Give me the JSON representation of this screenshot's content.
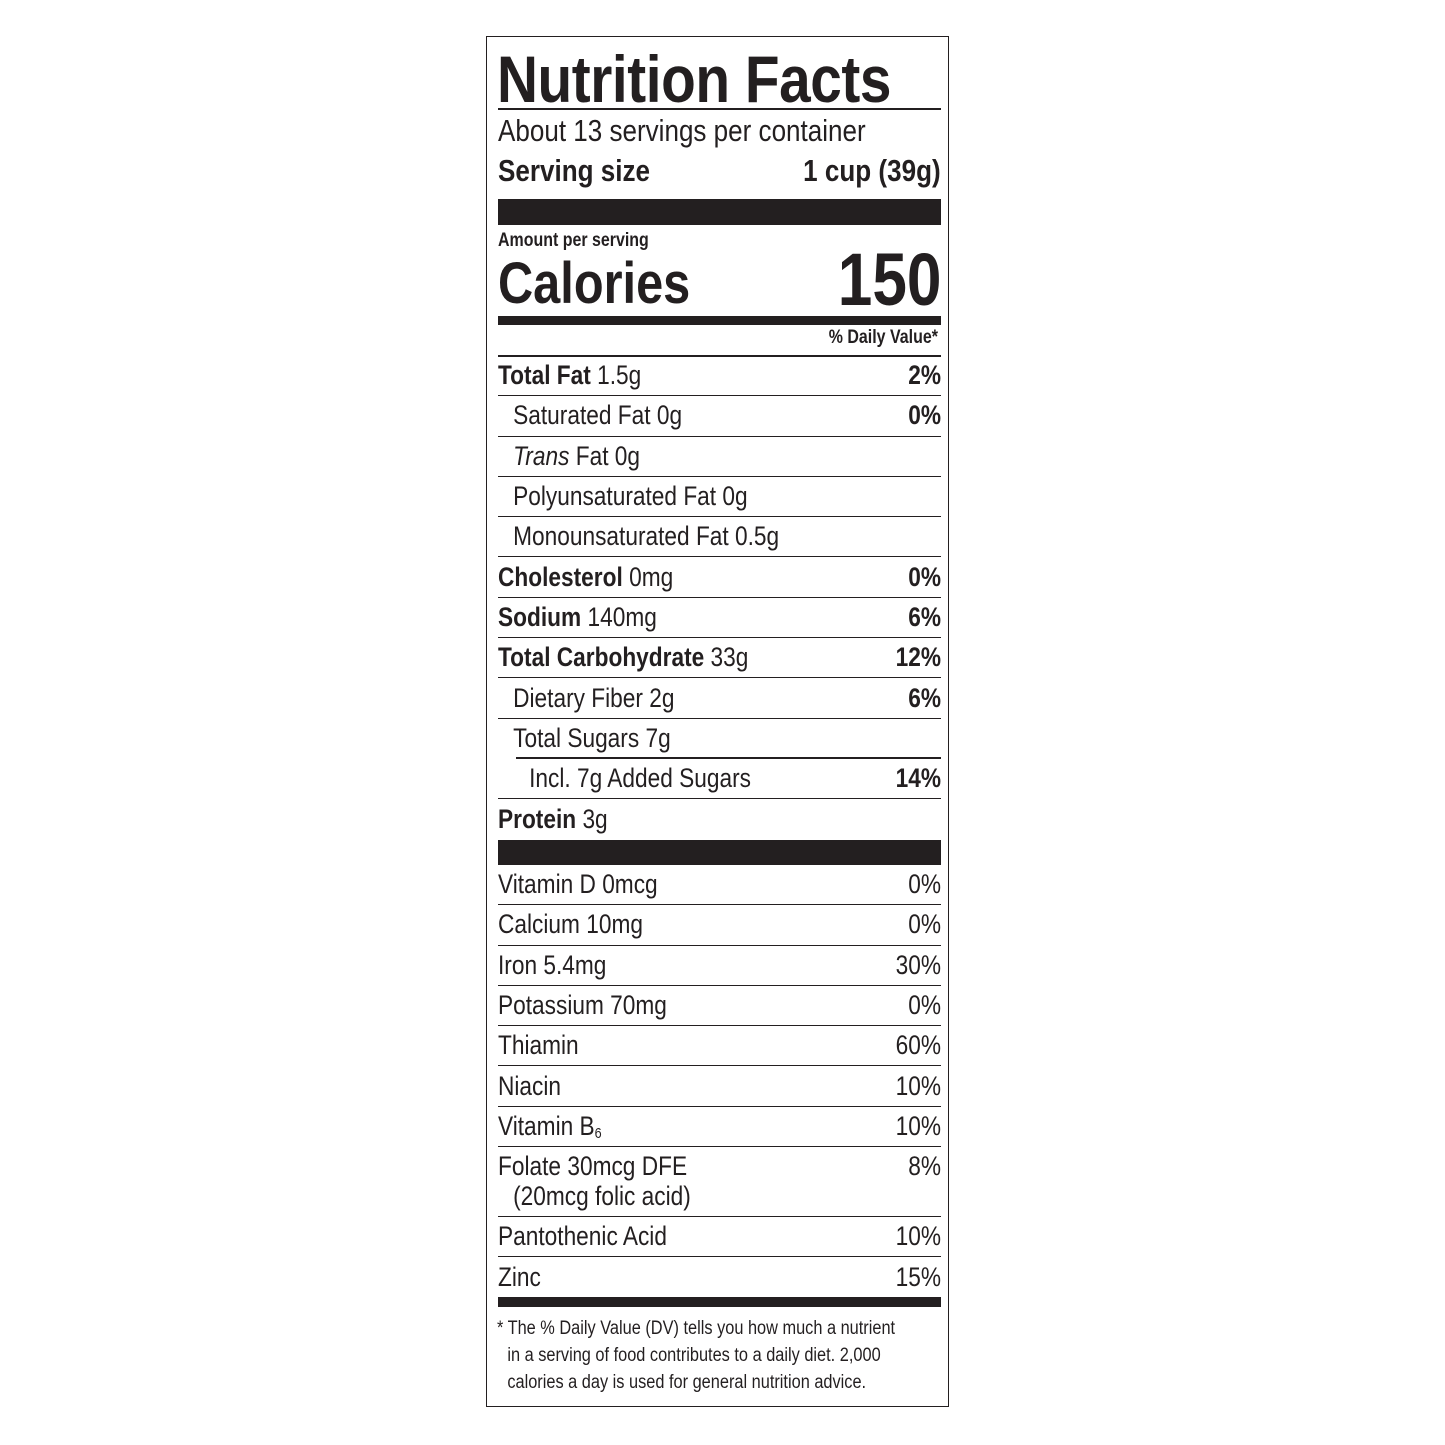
{
  "title": "Nutrition Facts",
  "servings_per_container": "About 13 servings per container",
  "serving_size": {
    "label": "Serving size",
    "value": "1 cup (39g)"
  },
  "amount_per_serving": "Amount per serving",
  "calories": {
    "label": "Calories",
    "value": "150"
  },
  "daily_value_header": "% Daily Value*",
  "nutrients": [
    {
      "name": "Total Fat",
      "amount": "1.5g",
      "dv": "2%"
    },
    {
      "name": "Saturated Fat 0g",
      "dv": "0%"
    },
    {
      "name_italic": "Trans",
      "name": "Fat 0g"
    },
    {
      "name": "Polyunsaturated Fat 0g"
    },
    {
      "name": "Monounsaturated Fat 0.5g"
    },
    {
      "name": "Cholesterol",
      "amount": "0mg",
      "dv": "0%"
    },
    {
      "name": "Sodium",
      "amount": "140mg",
      "dv": "6%"
    },
    {
      "name": "Total Carbohydrate",
      "amount": "33g",
      "dv": "12%"
    },
    {
      "name": "Dietary Fiber 2g",
      "dv": "6%"
    },
    {
      "name": "Total Sugars 7g"
    },
    {
      "name": "Incl. 7g Added Sugars",
      "dv": "14%"
    },
    {
      "name": "Protein",
      "amount": "3g"
    }
  ],
  "vitamins": [
    {
      "name": "Vitamin D 0mcg",
      "dv": "0%"
    },
    {
      "name": "Calcium 10mg",
      "dv": "0%"
    },
    {
      "name": "Iron 5.4mg",
      "dv": "30%"
    },
    {
      "name": "Potassium 70mg",
      "dv": "0%"
    },
    {
      "name": "Thiamin",
      "dv": "60%"
    },
    {
      "name": "Niacin",
      "dv": "10%"
    },
    {
      "name": "Vitamin B",
      "subscript": "6",
      "dv": "10%"
    },
    {
      "name": "Folate 30mcg DFE",
      "name_line2": "(20mcg folic acid)",
      "dv": "8%"
    },
    {
      "name": "Pantothenic Acid",
      "dv": "10%"
    },
    {
      "name": "Zinc",
      "dv": "15%"
    }
  ],
  "footnote": [
    "* The % Daily Value (DV) tells you how much a nutrient",
    "in a serving of food contributes to a daily diet. 2,000",
    "calories a day is used for general nutrition advice."
  ]
}
